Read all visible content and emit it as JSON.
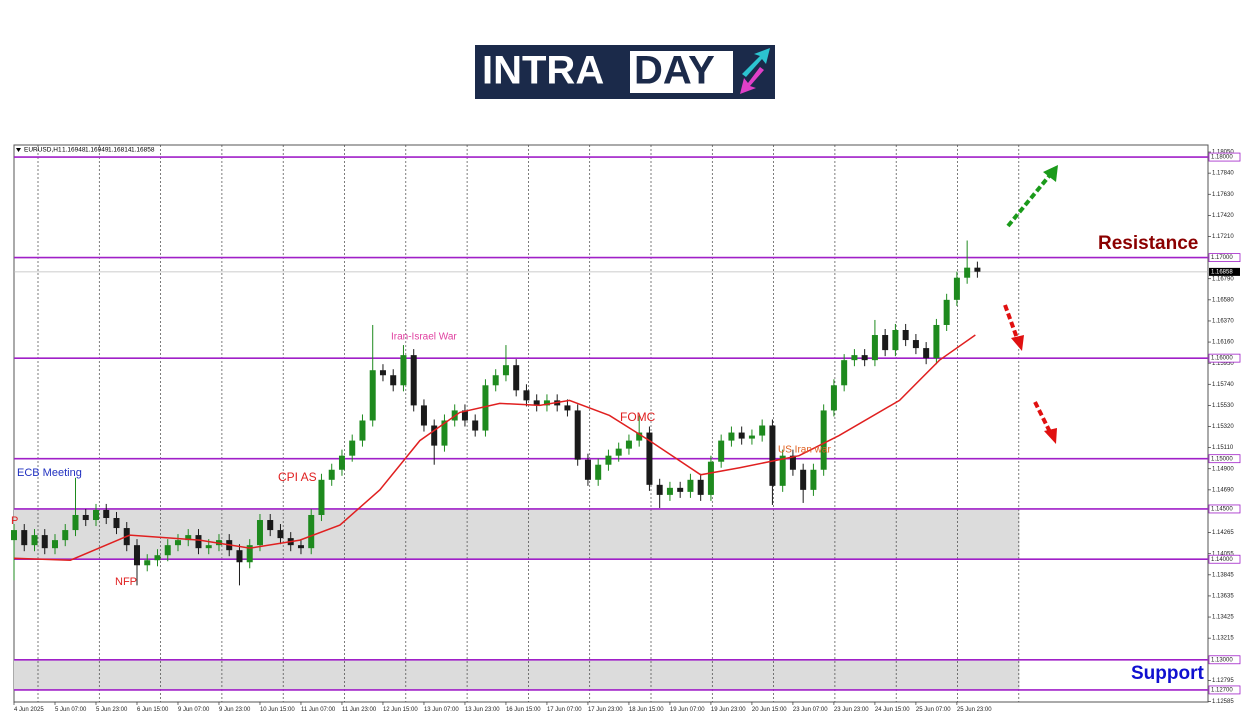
{
  "logo": {
    "left": "INTRA",
    "right": "DAY"
  },
  "chart_data": {
    "type": "candlestick",
    "symbol": "EURUSD,H1",
    "header_values": [
      1.16948,
      1.16949,
      1.16814,
      1.16858
    ],
    "xlim": [
      0,
      116.5
    ],
    "ylim": [
      1.1258,
      1.1812
    ],
    "yticks": [
      {
        "value": 1.1805,
        "label": "1.18050"
      },
      {
        "value": 1.1784,
        "label": "1.17840"
      },
      {
        "value": 1.1763,
        "label": "1.17630"
      },
      {
        "value": 1.1742,
        "label": "1.17420"
      },
      {
        "value": 1.1721,
        "label": "1.17210"
      },
      {
        "value": 1.1679,
        "label": "1.16790"
      },
      {
        "value": 1.1658,
        "label": "1.16580"
      },
      {
        "value": 1.1637,
        "label": "1.16370"
      },
      {
        "value": 1.1616,
        "label": "1.16160"
      },
      {
        "value": 1.1595,
        "label": "1.15950"
      },
      {
        "value": 1.1574,
        "label": "1.15740"
      },
      {
        "value": 1.1553,
        "label": "1.15530"
      },
      {
        "value": 1.1532,
        "label": "1.15320"
      },
      {
        "value": 1.1511,
        "label": "1.15110"
      },
      {
        "value": 1.149,
        "label": "1.14900"
      },
      {
        "value": 1.1469,
        "label": "1.14690"
      },
      1.14265,
      1.14055,
      1.13845,
      1.13635,
      1.13425,
      1.13215,
      1.12795,
      1.12585
    ],
    "xticks": [
      {
        "value": 0,
        "label": "4 Jun 2025"
      },
      {
        "value": 4,
        "label": "5 Jun 07:00"
      },
      {
        "value": 8,
        "label": "5 Jun 23:00"
      },
      {
        "value": 12,
        "label": "6 Jun 15:00"
      },
      {
        "value": 16,
        "label": "9 Jun 07:00"
      },
      {
        "value": 20,
        "label": "9 Jun 23:00"
      },
      {
        "value": 24,
        "label": "10 Jun 15:00"
      },
      {
        "value": 28,
        "label": "11 Jun 07:00"
      },
      {
        "value": 32,
        "label": "11 Jun 23:00"
      },
      {
        "value": 36,
        "label": "12 Jun 15:00"
      },
      {
        "value": 40,
        "label": "13 Jun 07:00"
      },
      {
        "value": 44,
        "label": "13 Jun 23:00"
      },
      {
        "value": 48,
        "label": "16 Jun 15:00"
      },
      {
        "value": 52,
        "label": "17 Jun 07:00"
      },
      {
        "value": 56,
        "label": "17 Jun 23:00"
      },
      {
        "value": 60,
        "label": "18 Jun 15:00"
      },
      {
        "value": 64,
        "label": "19 Jun 07:00"
      },
      {
        "value": 68,
        "label": "19 Jun 23:00"
      },
      {
        "value": 72,
        "label": "20 Jun 15:00"
      },
      {
        "value": 76,
        "label": "23 Jun 07:00"
      },
      {
        "value": 80,
        "label": "23 Jun 23:00"
      },
      {
        "value": 84,
        "label": "24 Jun 15:00"
      },
      {
        "value": 88,
        "label": "25 Jun 07:00"
      },
      {
        "value": 92,
        "label": "25 Jun 23:00"
      }
    ],
    "bull_color": "#1e8a1e",
    "bear_color": "#1a1a1a",
    "open": [
      1.1419,
      1.1429,
      1.1414,
      1.1424,
      1.1411,
      1.1419,
      1.1429,
      1.1444,
      1.1439,
      1.1449,
      1.1441,
      1.1431,
      1.1414,
      1.1394,
      1.1399,
      1.1404,
      1.1414,
      1.1419,
      1.1424,
      1.1411,
      1.1414,
      1.1419,
      1.1409,
      1.1397,
      1.1414,
      1.1439,
      1.1429,
      1.1421,
      1.1414,
      1.1411,
      1.1444,
      1.1479,
      1.1489,
      1.1503,
      1.1518,
      1.1538,
      1.1588,
      1.1583,
      1.1573,
      1.1603,
      1.1553,
      1.1533,
      1.1513,
      1.1538,
      1.1548,
      1.1538,
      1.1528,
      1.1573,
      1.1583,
      1.1593,
      1.1568,
      1.1558,
      1.1553,
      1.1558,
      1.1553,
      1.1548,
      1.1499,
      1.1479,
      1.1494,
      1.1503,
      1.151,
      1.1518,
      1.1526,
      1.1474,
      1.1464,
      1.1471,
      1.1467,
      1.1479,
      1.1464,
      1.1497,
      1.1518,
      1.1526,
      1.152,
      1.1523,
      1.1533,
      1.1473,
      1.1503,
      1.1489,
      1.1469,
      1.1489,
      1.1548,
      1.1573,
      1.1598,
      1.1603,
      1.1598,
      1.1623,
      1.1608,
      1.1628,
      1.1618,
      1.161,
      1.16,
      1.1633,
      1.1658,
      1.168,
      1.169
    ],
    "high": [
      1.1435,
      1.1435,
      1.143,
      1.143,
      1.1425,
      1.1435,
      1.1481,
      1.145,
      1.1455,
      1.1455,
      1.1447,
      1.1437,
      1.142,
      1.1405,
      1.141,
      1.142,
      1.1425,
      1.143,
      1.143,
      1.142,
      1.1425,
      1.1425,
      1.1415,
      1.142,
      1.1445,
      1.1445,
      1.1435,
      1.1427,
      1.142,
      1.145,
      1.1485,
      1.1495,
      1.1509,
      1.1524,
      1.1544,
      1.1633,
      1.1594,
      1.1589,
      1.1613,
      1.1609,
      1.1559,
      1.1539,
      1.1544,
      1.1554,
      1.1554,
      1.1544,
      1.1579,
      1.1589,
      1.1613,
      1.1599,
      1.1574,
      1.1564,
      1.1564,
      1.1564,
      1.1559,
      1.1554,
      1.1505,
      1.15,
      1.1509,
      1.1516,
      1.1524,
      1.1543,
      1.1532,
      1.148,
      1.1477,
      1.1477,
      1.1485,
      1.1485,
      1.1503,
      1.1524,
      1.1532,
      1.1532,
      1.1529,
      1.1539,
      1.1539,
      1.1509,
      1.1509,
      1.1495,
      1.1495,
      1.1554,
      1.1579,
      1.1604,
      1.1609,
      1.1609,
      1.1638,
      1.1629,
      1.1634,
      1.1634,
      1.1624,
      1.1616,
      1.1639,
      1.1664,
      1.1686,
      1.1717,
      1.1696
    ],
    "low": [
      1.1379,
      1.1408,
      1.1408,
      1.1405,
      1.1405,
      1.1413,
      1.1423,
      1.1433,
      1.1433,
      1.1435,
      1.1425,
      1.1408,
      1.1374,
      1.1388,
      1.1393,
      1.1398,
      1.1408,
      1.1413,
      1.1405,
      1.1405,
      1.1408,
      1.1403,
      1.1374,
      1.1391,
      1.1408,
      1.1423,
      1.1415,
      1.1408,
      1.1405,
      1.1405,
      1.1438,
      1.1473,
      1.1483,
      1.1497,
      1.1512,
      1.1532,
      1.1577,
      1.1567,
      1.1567,
      1.1547,
      1.1527,
      1.1494,
      1.1507,
      1.1532,
      1.1532,
      1.1522,
      1.1522,
      1.1567,
      1.1577,
      1.1562,
      1.1552,
      1.1547,
      1.1547,
      1.1547,
      1.1542,
      1.1493,
      1.1473,
      1.1473,
      1.1488,
      1.1497,
      1.1504,
      1.1512,
      1.1468,
      1.1451,
      1.1458,
      1.1461,
      1.1461,
      1.1458,
      1.1458,
      1.1491,
      1.1512,
      1.1514,
      1.1514,
      1.1517,
      1.1454,
      1.1467,
      1.1483,
      1.1456,
      1.1463,
      1.1483,
      1.1542,
      1.1567,
      1.1592,
      1.1592,
      1.1592,
      1.1602,
      1.1602,
      1.1612,
      1.1604,
      1.1594,
      1.1594,
      1.1627,
      1.1652,
      1.1674,
      1.168
    ],
    "close": [
      1.1429,
      1.1414,
      1.1424,
      1.1411,
      1.1419,
      1.1429,
      1.1444,
      1.1439,
      1.1449,
      1.1441,
      1.1431,
      1.1414,
      1.1394,
      1.1399,
      1.1404,
      1.1414,
      1.1419,
      1.1424,
      1.1411,
      1.1414,
      1.1419,
      1.1409,
      1.1397,
      1.1414,
      1.1439,
      1.1429,
      1.1421,
      1.1414,
      1.1411,
      1.1444,
      1.1479,
      1.1489,
      1.1503,
      1.1518,
      1.1538,
      1.1588,
      1.1583,
      1.1573,
      1.1603,
      1.1553,
      1.1533,
      1.1513,
      1.1538,
      1.1548,
      1.1538,
      1.1528,
      1.1573,
      1.1583,
      1.1593,
      1.1568,
      1.1558,
      1.1553,
      1.1558,
      1.1553,
      1.1548,
      1.1499,
      1.1479,
      1.1494,
      1.1503,
      1.151,
      1.1518,
      1.1526,
      1.1474,
      1.1464,
      1.1471,
      1.1467,
      1.1479,
      1.1464,
      1.1497,
      1.1518,
      1.1526,
      1.152,
      1.1523,
      1.1533,
      1.1473,
      1.1503,
      1.1489,
      1.1469,
      1.1489,
      1.1548,
      1.1573,
      1.1598,
      1.1603,
      1.1598,
      1.1623,
      1.1608,
      1.1628,
      1.1618,
      1.161,
      1.16,
      1.1633,
      1.1658,
      1.168,
      1.169,
      1.1686
    ],
    "ma": {
      "color": "#e02020",
      "x": [
        0,
        5.5,
        11.3,
        18.1,
        23,
        27.9,
        31.8,
        35.7,
        39.6,
        43.5,
        47.4,
        51.3,
        54.2,
        58.1,
        62,
        67,
        70.8,
        76.6,
        80.5,
        86.4,
        90.3,
        93.8
      ],
      "values": [
        1.1401,
        1.1399,
        1.1424,
        1.1419,
        1.1411,
        1.1419,
        1.1434,
        1.1469,
        1.1518,
        1.1546,
        1.1555,
        1.1553,
        1.1558,
        1.1543,
        1.1518,
        1.1484,
        1.1491,
        1.1503,
        1.1523,
        1.1558,
        1.1598,
        1.1623
      ]
    },
    "levels": {
      "color": "#a020c8",
      "values": [
        {
          "value": 1.18,
          "label": "1.18000"
        },
        {
          "value": 1.17,
          "label": "1.17000"
        },
        {
          "value": 1.16,
          "label": "1.16000"
        },
        {
          "value": 1.15,
          "label": "1.15000"
        },
        {
          "value": 1.145,
          "label": "1.14500"
        },
        {
          "value": 1.14,
          "label": "1.14000"
        },
        {
          "value": 1.13,
          "label": "1.13000"
        },
        {
          "value": 1.127,
          "label": "1.12700"
        }
      ]
    },
    "zones": [
      {
        "from": 1.14,
        "to": 1.145,
        "x_end": 98.1
      },
      {
        "from": 1.127,
        "to": 1.13,
        "x_end": 98.1
      }
    ],
    "annotations": [
      {
        "text": "ECB Meeting",
        "color": "#2030c0"
      },
      {
        "text": "P",
        "color": "#e02020"
      },
      {
        "text": "NFP",
        "color": "#e02020"
      },
      {
        "text": "CPI AS",
        "color": "#e02020"
      },
      {
        "text": "Iran-Israel War",
        "color": "#e040a0"
      },
      {
        "text": "FOMC",
        "color": "#e02020"
      },
      {
        "text": "US Iran war",
        "color": "#e06020"
      },
      {
        "text": "Resistance",
        "color": "#8b0000"
      },
      {
        "text": "Support",
        "color": "#1010d0"
      }
    ]
  }
}
